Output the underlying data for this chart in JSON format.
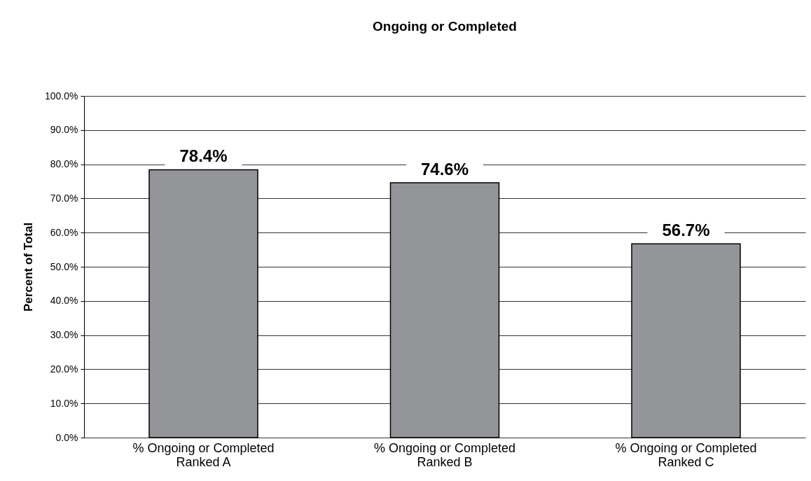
{
  "chart_data": {
    "type": "bar",
    "title": "Ongoing or Completed",
    "ylabel": "Percent of Total",
    "categories": [
      "% Ongoing or Completed\nRanked A",
      "% Ongoing or Completed\nRanked B",
      "% Ongoing or Completed\nRanked C"
    ],
    "values": [
      78.4,
      74.6,
      56.7
    ],
    "value_labels": [
      "78.4%",
      "74.6%",
      "56.7%"
    ],
    "color": "#939598",
    "ylim": [
      0,
      100
    ],
    "yticks": [
      {
        "value": 0,
        "label": "0.0%"
      },
      {
        "value": 10,
        "label": "10.0%"
      },
      {
        "value": 20,
        "label": "20.0%"
      },
      {
        "value": 30,
        "label": "30.0%"
      },
      {
        "value": 40,
        "label": "40.0%"
      },
      {
        "value": 50,
        "label": "50.0%"
      },
      {
        "value": 60,
        "label": "60.0%"
      },
      {
        "value": 70,
        "label": "70.0%"
      },
      {
        "value": 80,
        "label": "80.0%"
      },
      {
        "value": 90,
        "label": "90.0%"
      },
      {
        "value": 100,
        "label": "100.0%"
      }
    ],
    "grid": "y"
  }
}
